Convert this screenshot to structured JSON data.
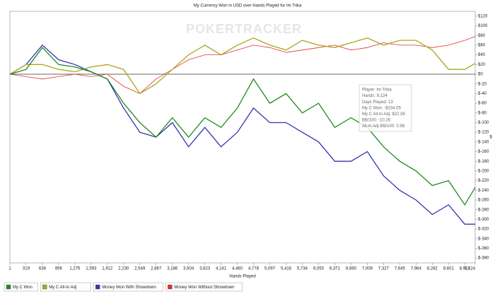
{
  "chart_data": {
    "type": "line",
    "title": "My Currency Won in USD over Hands Played for  Im Trika",
    "watermark": "POKERTRACKER",
    "x_label": "Hands Played",
    "y_label": "$",
    "x": [
      1,
      319,
      638,
      956,
      1275,
      1593,
      1912,
      2230,
      2549,
      2867,
      3186,
      3504,
      3823,
      4141,
      4460,
      4778,
      5097,
      5416,
      5734,
      6053,
      6371,
      6690,
      7008,
      7327,
      7645,
      7964,
      8282,
      8601,
      8919,
      9124
    ],
    "series": [
      {
        "name": "My C Won",
        "color": "#1f8a1f",
        "values": [
          0,
          10,
          55,
          20,
          15,
          5,
          -10,
          -60,
          -100,
          -130,
          -90,
          -130,
          -90,
          -110,
          -70,
          -10,
          -60,
          -40,
          -80,
          -60,
          -110,
          -90,
          -110,
          -150,
          -180,
          -200,
          -230,
          -220,
          -270,
          -234.05
        ]
      },
      {
        "name": "My C All-In Adj",
        "color": "#a9a61e",
        "values": [
          0,
          20,
          20,
          10,
          5,
          15,
          20,
          10,
          -40,
          -20,
          10,
          40,
          60,
          40,
          60,
          75,
          60,
          50,
          70,
          60,
          55,
          65,
          75,
          60,
          70,
          70,
          50,
          10,
          10,
          22.39
        ]
      },
      {
        "name": "Money Won With Showdown",
        "color": "#3434b0",
        "values": [
          0,
          20,
          60,
          30,
          20,
          5,
          -10,
          -70,
          -120,
          -130,
          -100,
          -150,
          -110,
          -150,
          -120,
          -70,
          -100,
          -100,
          -120,
          -140,
          -180,
          -180,
          -160,
          -210,
          -240,
          -260,
          -290,
          -270,
          -310,
          -310
        ]
      },
      {
        "name": "Money Won Without Showdown",
        "color": "#e03030",
        "values": [
          0,
          -5,
          -10,
          -5,
          0,
          -5,
          0,
          -25,
          -40,
          -10,
          10,
          30,
          40,
          40,
          50,
          60,
          55,
          45,
          50,
          55,
          60,
          50,
          55,
          65,
          60,
          60,
          55,
          60,
          70,
          78
        ]
      }
    ],
    "xlim": [
      1,
      9124
    ],
    "xticks": [
      1,
      319,
      638,
      956,
      {
        "value": 1275,
        "label": "1,275"
      },
      {
        "value": 1593,
        "label": "1,593"
      },
      {
        "value": 1912,
        "label": "1,912"
      },
      {
        "value": 2230,
        "label": "2,230"
      },
      {
        "value": 2549,
        "label": "2,549"
      },
      {
        "value": 2867,
        "label": "2,867"
      },
      {
        "value": 3186,
        "label": "3,186"
      },
      {
        "value": 3504,
        "label": "3,504"
      },
      {
        "value": 3823,
        "label": "3,823"
      },
      {
        "value": 4141,
        "label": "4,141"
      },
      {
        "value": 4460,
        "label": "4,460"
      },
      {
        "value": 4778,
        "label": "4,778"
      },
      {
        "value": 5097,
        "label": "5,097"
      },
      {
        "value": 5416,
        "label": "5,416"
      },
      {
        "value": 5734,
        "label": "5,734"
      },
      {
        "value": 6053,
        "label": "6,053"
      },
      {
        "value": 6371,
        "label": "6,371"
      },
      {
        "value": 6690,
        "label": "6,690"
      },
      {
        "value": 7008,
        "label": "7,008"
      },
      {
        "value": 7327,
        "label": "7,327"
      },
      {
        "value": 7645,
        "label": "7,645"
      },
      {
        "value": 7964,
        "label": "7,964"
      },
      {
        "value": 8282,
        "label": "8,282"
      },
      {
        "value": 8601,
        "label": "8,601"
      },
      {
        "value": 8919,
        "label": "8,919"
      },
      {
        "value": 9124,
        "label": "9,124"
      }
    ],
    "ylim": [
      -390,
      130
    ],
    "yticks": [
      {
        "value": 120,
        "label": "$120"
      },
      {
        "value": 100,
        "label": "$100"
      },
      {
        "value": 80,
        "label": "$80"
      },
      {
        "value": 60,
        "label": "$60"
      },
      {
        "value": 40,
        "label": "$40"
      },
      {
        "value": 20,
        "label": "$20"
      },
      {
        "value": 0,
        "label": "$0"
      },
      {
        "value": -20,
        "label": "$-20"
      },
      {
        "value": -40,
        "label": "$-40"
      },
      {
        "value": -60,
        "label": "$-60"
      },
      {
        "value": -80,
        "label": "$-80"
      },
      {
        "value": -100,
        "label": "$-100"
      },
      {
        "value": -120,
        "label": "$-120"
      },
      {
        "value": -140,
        "label": "$-140"
      },
      {
        "value": -160,
        "label": "$-160"
      },
      {
        "value": -180,
        "label": "$-180"
      },
      {
        "value": -200,
        "label": "$-200"
      },
      {
        "value": -220,
        "label": "$-220"
      },
      {
        "value": -240,
        "label": "$-240"
      },
      {
        "value": -260,
        "label": "$-260"
      },
      {
        "value": -280,
        "label": "$-280"
      },
      {
        "value": -300,
        "label": "$-300"
      },
      {
        "value": -320,
        "label": "$-320"
      },
      {
        "value": -340,
        "label": "$-340"
      },
      {
        "value": -360,
        "label": "$-360"
      },
      {
        "value": -380,
        "label": "$-380"
      }
    ],
    "tooltip": [
      "Player: Im Trika",
      "Hands: 9,124",
      "Days Played: 13",
      "My C Won: -$234.05",
      "My C All-In Adj: $22.39",
      "BB/100: -10.26",
      "All-In Adj BB/100: 0.98"
    ]
  }
}
